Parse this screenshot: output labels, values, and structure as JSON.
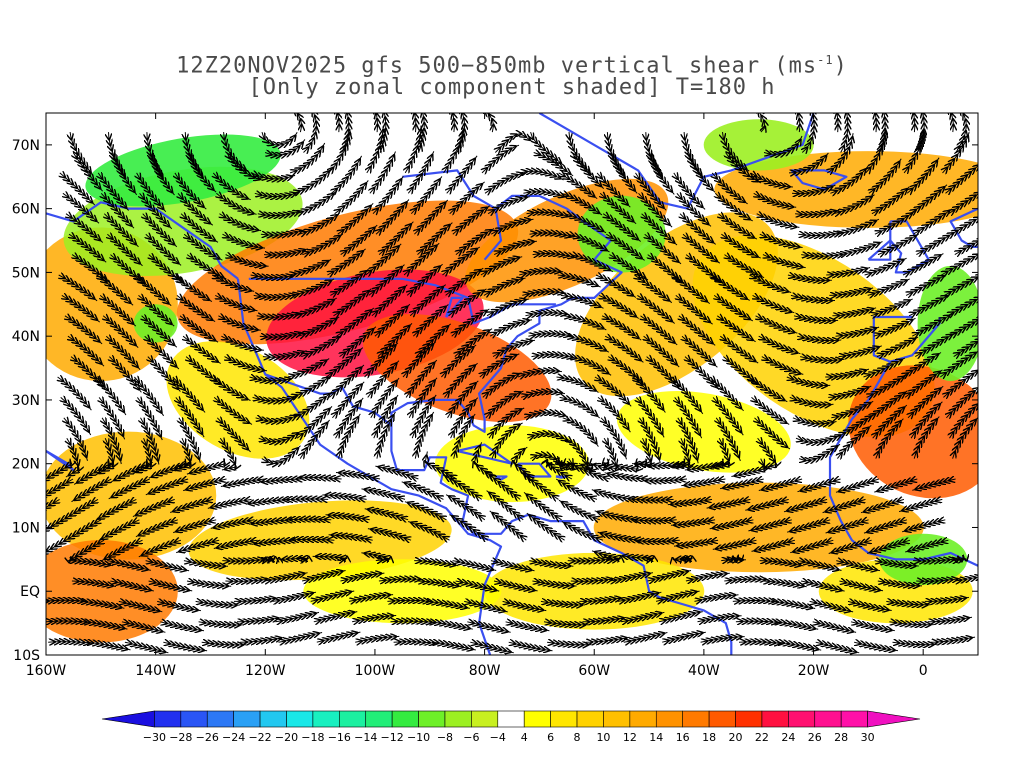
{
  "title": {
    "line1_prefix": "12Z20NOV2025 gfs 500−850mb vertical shear (ms",
    "line1_sup": "-1",
    "line1_suffix": ")",
    "line2": "[Only zonal component shaded] T=180 h"
  },
  "map": {
    "lon_range": [
      -160,
      10
    ],
    "lat_range": [
      -10,
      75
    ],
    "lat_labels": [
      "70N",
      "60N",
      "50N",
      "40N",
      "30N",
      "20N",
      "10N",
      "EQ",
      "10S"
    ],
    "lat_values": [
      70,
      60,
      50,
      40,
      30,
      20,
      10,
      0,
      -10
    ],
    "lon_labels": [
      "160W",
      "140W",
      "120W",
      "100W",
      "80W",
      "60W",
      "40W",
      "20W",
      "0"
    ],
    "lon_values": [
      -160,
      -140,
      -120,
      -100,
      -80,
      -60,
      -40,
      -20,
      0
    ],
    "coastline_color": "#3a4ff0",
    "streamline_color": "#000000"
  },
  "colorbar": {
    "labels": [
      "-30",
      "-28",
      "-26",
      "-24",
      "-22",
      "-20",
      "-18",
      "-16",
      "-14",
      "-12",
      "-10",
      "-8",
      "-6",
      "-4",
      "4",
      "6",
      "8",
      "10",
      "12",
      "14",
      "16",
      "18",
      "20",
      "22",
      "24",
      "26",
      "28",
      "30"
    ],
    "colors": [
      "#1a0fe0",
      "#2230f0",
      "#2a55f5",
      "#2c78f5",
      "#2aa0f5",
      "#22c8f0",
      "#1ae8e8",
      "#18f0c0",
      "#1cf0a0",
      "#22ee78",
      "#34ec40",
      "#6ef028",
      "#9cf022",
      "#c8f020",
      "#ffffff",
      "#ffff00",
      "#ffe600",
      "#ffd200",
      "#ffc000",
      "#ffaa00",
      "#ff9200",
      "#ff7a00",
      "#ff5a00",
      "#ff3000",
      "#ff1040",
      "#ff1070",
      "#ff1090",
      "#ff10a8",
      "#f010c0"
    ]
  }
}
